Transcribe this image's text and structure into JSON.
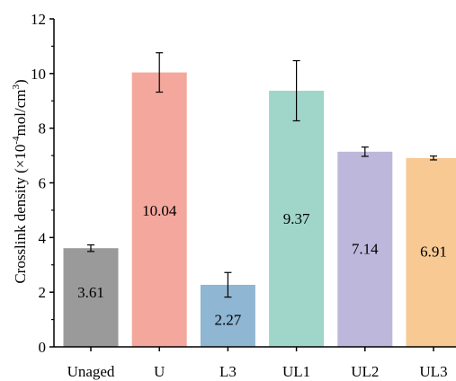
{
  "chart_data": {
    "type": "bar",
    "title": "",
    "xlabel": "",
    "ylabel": {
      "prefix": "Crosslink density (×10",
      "exp1": "-4",
      "middle": "mol/cm",
      "exp2": "3",
      "suffix": ")"
    },
    "ylim": [
      0,
      12
    ],
    "yticks": [
      "0",
      "2",
      "4",
      "6",
      "8",
      "10",
      "12"
    ],
    "categories": [
      "Unaged",
      "U",
      "L3",
      "UL1",
      "UL2",
      "UL3"
    ],
    "values": [
      3.61,
      10.04,
      2.27,
      9.37,
      7.14,
      6.91
    ],
    "value_labels": [
      "3.61",
      "10.04",
      "2.27",
      "9.37",
      "7.14",
      "6.91"
    ],
    "errors": [
      0.12,
      0.72,
      0.45,
      1.1,
      0.17,
      0.07
    ],
    "label_values": [
      2.0,
      5.0,
      1.0,
      4.7,
      3.6,
      3.5
    ],
    "colors": [
      "#9a9a9a",
      "#f4a79d",
      "#8fb6d2",
      "#9fd6c9",
      "#bdb7db",
      "#f8c993"
    ],
    "grid": false,
    "legend": "none"
  }
}
